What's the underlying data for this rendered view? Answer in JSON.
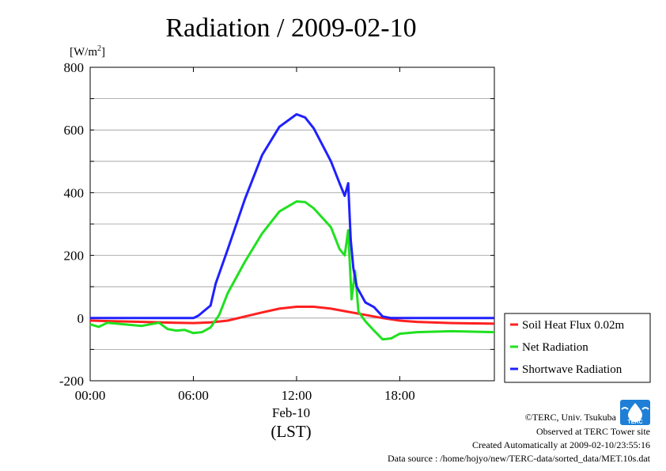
{
  "chart_data": {
    "type": "line",
    "title": "Radiation / 2009-02-10",
    "ylabel_unit": "[W/m",
    "ylabel_unit_sup": "2",
    "ylabel_unit_end": "]",
    "xlabel": "(LST)",
    "x_date_label": "Feb-10",
    "x_ticks": [
      "00:00",
      "06:00",
      "12:00",
      "18:00"
    ],
    "y_ticks": [
      "800",
      "600",
      "400",
      "200",
      "0",
      "-200"
    ],
    "ylim": [
      -200,
      800
    ],
    "xlim_hours": [
      0,
      23.5
    ],
    "grid": true,
    "legend_position": "right",
    "series": [
      {
        "name": "Soil Heat Flux 0.02m",
        "color": "#ff2020",
        "points": [
          [
            0,
            -8
          ],
          [
            3,
            -12
          ],
          [
            5,
            -15
          ],
          [
            6,
            -16
          ],
          [
            7,
            -14
          ],
          [
            8,
            -8
          ],
          [
            9,
            5
          ],
          [
            10,
            18
          ],
          [
            11,
            30
          ],
          [
            12,
            36
          ],
          [
            13,
            36
          ],
          [
            14,
            30
          ],
          [
            15,
            20
          ],
          [
            16,
            10
          ],
          [
            17,
            0
          ],
          [
            18,
            -8
          ],
          [
            19,
            -12
          ],
          [
            21,
            -16
          ],
          [
            23.5,
            -18
          ]
        ]
      },
      {
        "name": "Net Radiation",
        "color": "#20e020",
        "points": [
          [
            0,
            -20
          ],
          [
            0.5,
            -28
          ],
          [
            1,
            -15
          ],
          [
            2,
            -20
          ],
          [
            3,
            -25
          ],
          [
            4,
            -15
          ],
          [
            4.5,
            -35
          ],
          [
            5,
            -40
          ],
          [
            5.5,
            -38
          ],
          [
            6,
            -48
          ],
          [
            6.5,
            -45
          ],
          [
            7,
            -30
          ],
          [
            7.5,
            10
          ],
          [
            8,
            80
          ],
          [
            9,
            180
          ],
          [
            10,
            270
          ],
          [
            11,
            340
          ],
          [
            12,
            372
          ],
          [
            12.5,
            370
          ],
          [
            13,
            350
          ],
          [
            14,
            290
          ],
          [
            14.5,
            220
          ],
          [
            14.8,
            200
          ],
          [
            15,
            280
          ],
          [
            15.2,
            60
          ],
          [
            15.4,
            150
          ],
          [
            15.6,
            20
          ],
          [
            16,
            -10
          ],
          [
            16.5,
            -40
          ],
          [
            17,
            -68
          ],
          [
            17.5,
            -65
          ],
          [
            18,
            -50
          ],
          [
            19,
            -45
          ],
          [
            21,
            -42
          ],
          [
            23.5,
            -45
          ]
        ]
      },
      {
        "name": "Shortwave Radiation",
        "color": "#2020ff",
        "points": [
          [
            0,
            0
          ],
          [
            5,
            0
          ],
          [
            6,
            0
          ],
          [
            6.3,
            8
          ],
          [
            7,
            40
          ],
          [
            7.3,
            110
          ],
          [
            8,
            220
          ],
          [
            9,
            380
          ],
          [
            10,
            520
          ],
          [
            11,
            610
          ],
          [
            12,
            650
          ],
          [
            12.5,
            640
          ],
          [
            13,
            605
          ],
          [
            14,
            500
          ],
          [
            14.5,
            430
          ],
          [
            14.8,
            390
          ],
          [
            15,
            430
          ],
          [
            15.15,
            250
          ],
          [
            15.3,
            160
          ],
          [
            15.5,
            100
          ],
          [
            16,
            50
          ],
          [
            16.5,
            35
          ],
          [
            17,
            5
          ],
          [
            17.5,
            0
          ],
          [
            18,
            0
          ],
          [
            23.5,
            0
          ]
        ]
      }
    ]
  },
  "credits": {
    "line1": "©TERC, Univ. Tsukuba",
    "line2": "Observed at TERC Tower site",
    "line3": "Created Automatically at 2009-02-10/23:55:16",
    "line4": "Data source : /home/hojyo/new/TERC-data/sorted_data/MET.10s.dat"
  },
  "logo": {
    "text": "TERC",
    "color": "#1f7fd6"
  }
}
